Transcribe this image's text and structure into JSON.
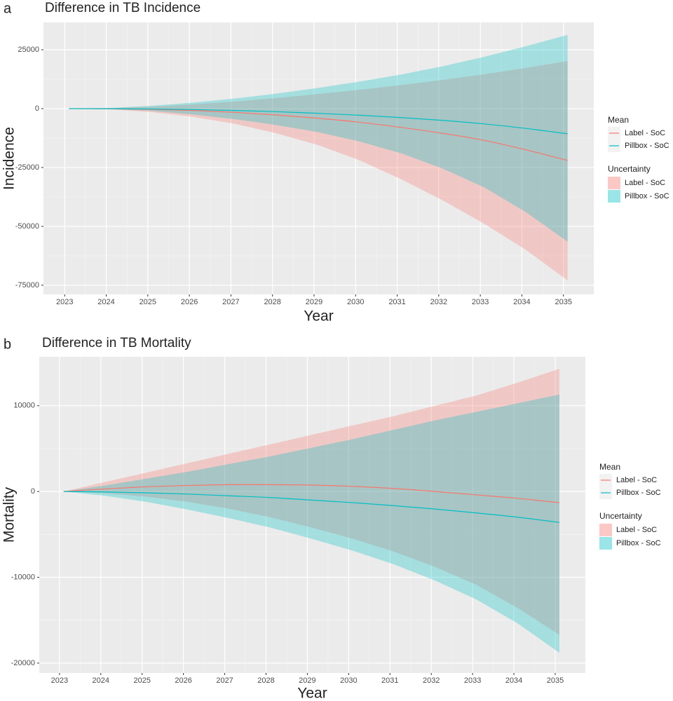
{
  "chart_data": [
    {
      "type": "line",
      "label": "a",
      "title": "Difference in TB Incidence",
      "xlabel": "Year",
      "ylabel": "Incidence",
      "legend": {
        "mean_title": "Mean",
        "band_title": "Uncertainty"
      },
      "grid": true,
      "x": [
        2023.1,
        2024.1,
        2025.1,
        2026.1,
        2027.1,
        2028.1,
        2029.1,
        2030.1,
        2031.1,
        2032.1,
        2033.1,
        2034.1,
        2035.1
      ],
      "xlim": [
        2022.49,
        2035.73
      ],
      "xticks": [
        2023,
        2024,
        2025,
        2026,
        2027,
        2028,
        2029,
        2030,
        2031,
        2032,
        2033,
        2034,
        2035
      ],
      "ylim": [
        -78900,
        36600
      ],
      "yticks": [
        -75000,
        -50000,
        -25000,
        0,
        25000
      ],
      "series": [
        {
          "name": "Label - SoC",
          "color": "#f8766d",
          "values": [
            0,
            -50,
            -300,
            -800,
            -1600,
            -2700,
            -4100,
            -5800,
            -8000,
            -10500,
            -13500,
            -17500,
            -22000
          ],
          "lower": [
            0,
            -300,
            -1500,
            -3500,
            -6500,
            -10500,
            -15500,
            -22000,
            -30000,
            -39000,
            -49000,
            -60000,
            -73000
          ],
          "upper": [
            0,
            200,
            800,
            1800,
            3000,
            4500,
            6200,
            8000,
            10000,
            12200,
            14600,
            17300,
            20200
          ]
        },
        {
          "name": "Pillbox - SoC",
          "color": "#00bfc4",
          "values": [
            0,
            -20,
            -150,
            -400,
            -800,
            -1300,
            -2000,
            -2800,
            -3800,
            -5000,
            -6500,
            -8400,
            -10700
          ],
          "lower": [
            0,
            -200,
            -1000,
            -2500,
            -4500,
            -7000,
            -10000,
            -14000,
            -19000,
            -25500,
            -33500,
            -44000,
            -56500
          ],
          "upper": [
            0,
            300,
            1200,
            2600,
            4300,
            6400,
            8800,
            11500,
            14500,
            18000,
            22000,
            26500,
            31300
          ]
        }
      ]
    },
    {
      "type": "line",
      "label": "b",
      "title": "Difference in TB Mortality",
      "xlabel": "Year",
      "ylabel": "Mortality",
      "legend": {
        "mean_title": "Mean",
        "band_title": "Uncertainty"
      },
      "grid": true,
      "x": [
        2023.1,
        2024.1,
        2025.1,
        2026.1,
        2027.1,
        2028.1,
        2029.1,
        2030.1,
        2031.1,
        2032.1,
        2033.1,
        2034.1,
        2035.1
      ],
      "xlim": [
        2022.51,
        2035.73
      ],
      "xticks": [
        2023,
        2024,
        2025,
        2026,
        2027,
        2028,
        2029,
        2030,
        2031,
        2032,
        2033,
        2034,
        2035
      ],
      "ylim": [
        -21150,
        15700
      ],
      "yticks": [
        -20000,
        -10000,
        0,
        10000
      ],
      "series": [
        {
          "name": "Label - SoC",
          "color": "#f8766d",
          "values": [
            0,
            300,
            550,
            700,
            800,
            800,
            750,
            600,
            350,
            0,
            -400,
            -800,
            -1300
          ],
          "lower": [
            0,
            -200,
            -600,
            -1200,
            -2000,
            -3000,
            -4200,
            -5500,
            -7000,
            -8800,
            -10900,
            -13600,
            -16700
          ],
          "upper": [
            0,
            1100,
            2200,
            3300,
            4400,
            5500,
            6600,
            7700,
            8800,
            10000,
            11200,
            12700,
            14300
          ]
        },
        {
          "name": "Pillbox - SoC",
          "color": "#00bfc4",
          "values": [
            0,
            -50,
            -150,
            -300,
            -500,
            -700,
            -1000,
            -1300,
            -1650,
            -2050,
            -2500,
            -3000,
            -3600
          ],
          "lower": [
            0,
            -500,
            -1200,
            -2100,
            -3100,
            -4200,
            -5500,
            -6900,
            -8500,
            -10400,
            -12600,
            -15400,
            -18800
          ],
          "upper": [
            0,
            700,
            1500,
            2300,
            3200,
            4100,
            5100,
            6100,
            7200,
            8300,
            9300,
            10300,
            11300
          ]
        }
      ]
    }
  ]
}
